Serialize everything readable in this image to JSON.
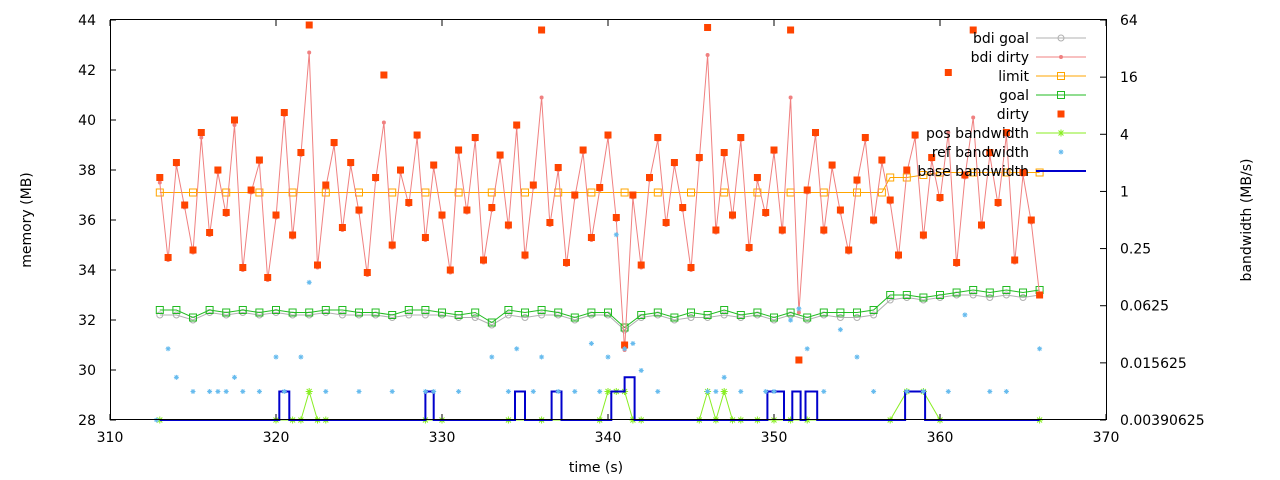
{
  "chart_data": {
    "type": "line",
    "xlabel": "time (s)",
    "ylabel": "memory (MB)",
    "y2label": "bandwidth (MB/s)",
    "xlim": [
      310,
      370
    ],
    "ylim": [
      28,
      44
    ],
    "x_ticks": [
      "310",
      "320",
      "330",
      "340",
      "350",
      "360",
      "370"
    ],
    "x_tick_values": [
      310,
      320,
      330,
      340,
      350,
      360,
      370
    ],
    "y_ticks": [
      "28",
      "30",
      "32",
      "34",
      "36",
      "38",
      "40",
      "42",
      "44"
    ],
    "y_tick_values": [
      28,
      30,
      32,
      34,
      36,
      38,
      40,
      42,
      44
    ],
    "y2_scale": "log2",
    "y2lim": [
      0.00390625,
      64
    ],
    "y2_ticks": [
      "0.00390625",
      "0.015625",
      "0.0625",
      "0.25",
      "1",
      "4",
      "16",
      "64"
    ],
    "y2_tick_values": [
      0.00390625,
      0.015625,
      0.0625,
      0.25,
      1,
      4,
      16,
      64
    ],
    "grid": false,
    "legend_position": "top-right",
    "series": [
      {
        "name": "bdi goal",
        "axis": "memory",
        "color": "#b0b0b0",
        "marker": "circle",
        "x": [
          313,
          314,
          315,
          316,
          317,
          318,
          319,
          320,
          321,
          322,
          323,
          324,
          325,
          326,
          327,
          328,
          329,
          330,
          331,
          332,
          333,
          334,
          335,
          336,
          337,
          338,
          339,
          340,
          341,
          342,
          343,
          344,
          345,
          346,
          347,
          348,
          349,
          350,
          351,
          352,
          353,
          354,
          355,
          356,
          357,
          358,
          359,
          360,
          361,
          362,
          363,
          364,
          365,
          366
        ],
        "y": [
          32.2,
          32.2,
          32.0,
          32.3,
          32.2,
          32.3,
          32.2,
          32.3,
          32.2,
          32.2,
          32.3,
          32.2,
          32.2,
          32.2,
          32.1,
          32.2,
          32.2,
          32.2,
          32.1,
          32.1,
          31.8,
          32.2,
          32.1,
          32.2,
          32.2,
          32.0,
          32.2,
          32.2,
          31.6,
          32.1,
          32.2,
          32.0,
          32.1,
          32.1,
          32.2,
          32.1,
          32.2,
          32.0,
          32.2,
          32.0,
          32.2,
          32.1,
          32.1,
          32.2,
          32.8,
          32.9,
          32.8,
          32.9,
          33.0,
          33.0,
          32.9,
          33.0,
          32.9,
          33.0
        ]
      },
      {
        "name": "bdi dirty",
        "axis": "memory",
        "color": "#f08080",
        "marker": "dot",
        "x": [
          313,
          313.5,
          314,
          314.5,
          315,
          315.5,
          316,
          316.5,
          317,
          317.5,
          318,
          318.5,
          319,
          319.5,
          320,
          320.5,
          321,
          321.5,
          322,
          322.5,
          323,
          323.5,
          324,
          324.5,
          325,
          325.5,
          326,
          326.5,
          327,
          327.5,
          328,
          328.5,
          329,
          329.5,
          330,
          330.5,
          331,
          331.5,
          332,
          332.5,
          333,
          333.5,
          334,
          334.5,
          335,
          335.5,
          336,
          336.5,
          337,
          337.5,
          338,
          338.5,
          339,
          339.5,
          340,
          340.5,
          341,
          341.5,
          342,
          342.5,
          343,
          343.5,
          344,
          344.5,
          345,
          345.5,
          346,
          346.5,
          347,
          347.5,
          348,
          348.5,
          349,
          349.5,
          350,
          350.5,
          351,
          351.5,
          352,
          352.5,
          353,
          353.5,
          354,
          354.5,
          355,
          355.5,
          356,
          356.5,
          357,
          357.5,
          358,
          358.5,
          359,
          359.5,
          360,
          360.5,
          361,
          361.5,
          362,
          362.5,
          363,
          363.5,
          364,
          364.5,
          365,
          365.5,
          366
        ],
        "y": [
          37.5,
          34.4,
          38.2,
          36.5,
          34.7,
          39.3,
          35.4,
          37.9,
          36.2,
          39.8,
          34.0,
          37.1,
          38.3,
          33.6,
          36.1,
          40.2,
          35.3,
          38.6,
          42.7,
          34.1,
          37.3,
          39.0,
          35.6,
          38.2,
          36.3,
          33.8,
          37.6,
          39.9,
          34.9,
          37.9,
          36.6,
          39.3,
          35.2,
          38.1,
          36.1,
          33.9,
          38.7,
          36.3,
          39.2,
          34.3,
          36.4,
          38.5,
          35.7,
          39.7,
          34.5,
          37.3,
          40.9,
          35.8,
          38.0,
          34.2,
          36.9,
          38.7,
          35.2,
          37.2,
          39.3,
          36.0,
          30.8,
          36.9,
          34.1,
          37.6,
          39.2,
          35.8,
          38.2,
          36.4,
          34.0,
          38.4,
          42.6,
          35.5,
          38.6,
          36.1,
          39.2,
          34.8,
          37.6,
          36.2,
          38.7,
          35.5,
          40.9,
          32.3,
          37.1,
          39.4,
          35.5,
          38.1,
          36.3,
          34.7,
          37.5,
          39.2,
          35.9,
          38.3,
          36.7,
          34.5,
          37.9,
          39.3,
          35.3,
          38.4,
          36.8,
          39.5,
          34.2,
          37.7,
          40.1,
          35.7,
          38.6,
          36.6,
          39.4,
          34.3,
          37.8,
          35.9,
          33.0
        ]
      },
      {
        "name": "limit",
        "axis": "memory",
        "color": "#ffa500",
        "marker": "square",
        "x": [
          313,
          315,
          317,
          319,
          321,
          323,
          325,
          327,
          329,
          331,
          333,
          335,
          337,
          339,
          341,
          343,
          345,
          347,
          349,
          351,
          353,
          355,
          356.5,
          357,
          358,
          359,
          360,
          362,
          364,
          366
        ],
        "y": [
          37.1,
          37.1,
          37.1,
          37.1,
          37.1,
          37.1,
          37.1,
          37.1,
          37.1,
          37.1,
          37.1,
          37.1,
          37.1,
          37.1,
          37.1,
          37.1,
          37.1,
          37.1,
          37.1,
          37.1,
          37.1,
          37.1,
          37.1,
          37.7,
          37.7,
          37.8,
          37.9,
          37.9,
          37.9,
          37.9
        ]
      },
      {
        "name": "goal",
        "axis": "memory",
        "color": "#22bb22",
        "marker": "square",
        "x": [
          313,
          314,
          315,
          316,
          317,
          318,
          319,
          320,
          321,
          322,
          323,
          324,
          325,
          326,
          327,
          328,
          329,
          330,
          331,
          332,
          333,
          334,
          335,
          336,
          337,
          338,
          339,
          340,
          341,
          342,
          343,
          344,
          345,
          346,
          347,
          348,
          349,
          350,
          351,
          352,
          353,
          354,
          355,
          356,
          357,
          358,
          359,
          360,
          361,
          362,
          363,
          364,
          365,
          366
        ],
        "y": [
          32.4,
          32.4,
          32.1,
          32.4,
          32.3,
          32.4,
          32.3,
          32.4,
          32.3,
          32.3,
          32.4,
          32.4,
          32.3,
          32.3,
          32.2,
          32.4,
          32.4,
          32.3,
          32.2,
          32.3,
          31.9,
          32.4,
          32.3,
          32.4,
          32.3,
          32.1,
          32.3,
          32.3,
          31.7,
          32.2,
          32.3,
          32.1,
          32.3,
          32.2,
          32.4,
          32.2,
          32.3,
          32.1,
          32.3,
          32.1,
          32.3,
          32.3,
          32.3,
          32.4,
          33.0,
          33.0,
          32.9,
          33.0,
          33.1,
          33.2,
          33.1,
          33.2,
          33.1,
          33.2
        ]
      },
      {
        "name": "dirty",
        "axis": "memory",
        "color": "#ff4400",
        "marker": "filled-square",
        "x": [
          313,
          313.5,
          314,
          314.5,
          315,
          315.5,
          316,
          316.5,
          317,
          317.5,
          318,
          318.5,
          319,
          319.5,
          320,
          320.5,
          321,
          321.5,
          322,
          322.5,
          323,
          323.5,
          324,
          324.5,
          325,
          325.5,
          326,
          326.5,
          327,
          327.5,
          328,
          328.5,
          329,
          329.5,
          330,
          330.5,
          331,
          331.5,
          332,
          332.5,
          333,
          333.5,
          334,
          334.5,
          335,
          335.5,
          336,
          336.5,
          337,
          337.5,
          338,
          338.5,
          339,
          339.5,
          340,
          340.5,
          341,
          341.5,
          342,
          342.5,
          343,
          343.5,
          344,
          344.5,
          345,
          345.5,
          346,
          346.5,
          347,
          347.5,
          348,
          348.5,
          349,
          349.5,
          350,
          350.5,
          351,
          351.5,
          352,
          352.5,
          353,
          353.5,
          354,
          354.5,
          355,
          355.5,
          356,
          356.5,
          357,
          357.5,
          358,
          358.5,
          359,
          359.5,
          360,
          360.5,
          361,
          361.5,
          362,
          362.5,
          363,
          363.5,
          364,
          364.5,
          365,
          365.5,
          366
        ],
        "y": [
          37.7,
          34.5,
          38.3,
          36.6,
          34.8,
          39.5,
          35.5,
          38.0,
          36.3,
          40.0,
          34.1,
          37.2,
          38.4,
          33.7,
          36.2,
          40.3,
          35.4,
          38.7,
          43.8,
          34.2,
          37.4,
          39.1,
          35.7,
          38.3,
          36.4,
          33.9,
          37.7,
          41.8,
          35.0,
          38.0,
          36.7,
          39.4,
          35.3,
          38.2,
          36.2,
          34.0,
          38.8,
          36.4,
          39.3,
          34.4,
          36.5,
          38.6,
          35.8,
          39.8,
          34.6,
          37.4,
          43.6,
          35.9,
          38.1,
          34.3,
          37.0,
          38.8,
          35.3,
          37.3,
          39.4,
          36.1,
          31.0,
          37.0,
          34.2,
          37.7,
          39.3,
          35.9,
          38.3,
          36.5,
          34.1,
          38.5,
          43.7,
          35.6,
          38.7,
          36.2,
          39.3,
          34.9,
          37.7,
          36.3,
          38.8,
          35.6,
          43.6,
          30.4,
          37.2,
          39.5,
          35.6,
          38.2,
          36.4,
          34.8,
          37.6,
          39.3,
          36.0,
          38.4,
          36.8,
          34.6,
          38.0,
          39.4,
          35.4,
          38.5,
          36.9,
          41.9,
          34.3,
          37.8,
          43.6,
          35.8,
          38.7,
          36.7,
          39.5,
          34.4,
          37.9,
          36.0,
          33.0
        ]
      },
      {
        "name": "pos bandwidth",
        "axis": "bandwidth",
        "color": "#88ee22",
        "marker": "star",
        "x": [
          313,
          320,
          321,
          321.5,
          322,
          322.5,
          323,
          329,
          330,
          334,
          336,
          339.5,
          340,
          340.5,
          341,
          341.5,
          342,
          345.5,
          346,
          346.5,
          347,
          347.5,
          348,
          349,
          350,
          351,
          352,
          357,
          358,
          359,
          360,
          366
        ],
        "y": [
          0.0039,
          0.0039,
          0.0039,
          0.0039,
          0.0078,
          0.0039,
          0.0039,
          0.0039,
          0.0039,
          0.0039,
          0.0039,
          0.0039,
          0.0078,
          0.0078,
          0.0078,
          0.0039,
          0.0039,
          0.0039,
          0.0078,
          0.0039,
          0.0078,
          0.0039,
          0.0039,
          0.0039,
          0.0039,
          0.0039,
          0.0039,
          0.0039,
          0.0078,
          0.0078,
          0.0039,
          0.0039
        ]
      },
      {
        "name": "ref bandwidth",
        "axis": "bandwidth",
        "color": "#66bbee",
        "marker": "asterisk",
        "x": [
          312.8,
          313.5,
          314,
          315,
          316,
          316.5,
          317,
          317.5,
          318,
          319,
          320,
          320.5,
          321.5,
          322,
          323,
          325,
          327,
          329,
          329.5,
          331,
          333,
          334,
          334.5,
          335.5,
          336,
          337,
          338,
          339,
          339.5,
          340,
          340.5,
          341,
          341.5,
          342,
          343,
          346,
          346.5,
          347,
          348,
          349.5,
          350,
          351,
          351.5,
          352,
          353,
          354,
          355,
          356,
          358,
          359,
          360.5,
          361.5,
          363,
          364,
          366
        ],
        "y": [
          0.0039,
          0.022,
          0.011,
          0.0078,
          0.0078,
          0.0078,
          0.0078,
          0.011,
          0.0078,
          0.0078,
          0.018,
          0.0078,
          0.018,
          0.11,
          0.0078,
          0.0078,
          0.0078,
          0.0078,
          0.0078,
          0.0078,
          0.018,
          0.0078,
          0.022,
          0.0078,
          0.018,
          0.0078,
          0.0078,
          0.025,
          0.0078,
          0.018,
          0.35,
          0.022,
          0.025,
          0.013,
          0.0078,
          0.0078,
          0.0078,
          0.011,
          0.0078,
          0.0078,
          0.0078,
          0.044,
          0.058,
          0.022,
          0.0078,
          0.035,
          0.018,
          0.0078,
          0.0078,
          0.0078,
          0.0078,
          0.05,
          0.0078,
          0.0078,
          0.022
        ]
      },
      {
        "name": "base bandwidth",
        "axis": "bandwidth",
        "color": "#0000cc",
        "marker": "line",
        "x": [
          313,
          320.2,
          320.2,
          320.8,
          320.8,
          329,
          329,
          329.5,
          329.5,
          334.4,
          334.4,
          335,
          335,
          336.6,
          336.6,
          337.2,
          337.2,
          340.2,
          340.2,
          341,
          341,
          341.6,
          341.6,
          349.6,
          349.6,
          350.6,
          350.6,
          351.1,
          351.1,
          351.6,
          351.6,
          351.9,
          351.9,
          352.6,
          352.6,
          357.9,
          357.9,
          359.1,
          359.1,
          366
        ],
        "y": [
          0.0039,
          0.0039,
          0.0078,
          0.0078,
          0.0039,
          0.0039,
          0.0078,
          0.0078,
          0.0039,
          0.0039,
          0.0078,
          0.0078,
          0.0039,
          0.0039,
          0.0078,
          0.0078,
          0.0039,
          0.0039,
          0.0078,
          0.0078,
          0.011,
          0.011,
          0.0039,
          0.0039,
          0.0078,
          0.0078,
          0.0039,
          0.0039,
          0.0078,
          0.0078,
          0.0039,
          0.0039,
          0.0078,
          0.0078,
          0.0039,
          0.0039,
          0.0078,
          0.0078,
          0.0039,
          0.0039
        ]
      }
    ]
  }
}
